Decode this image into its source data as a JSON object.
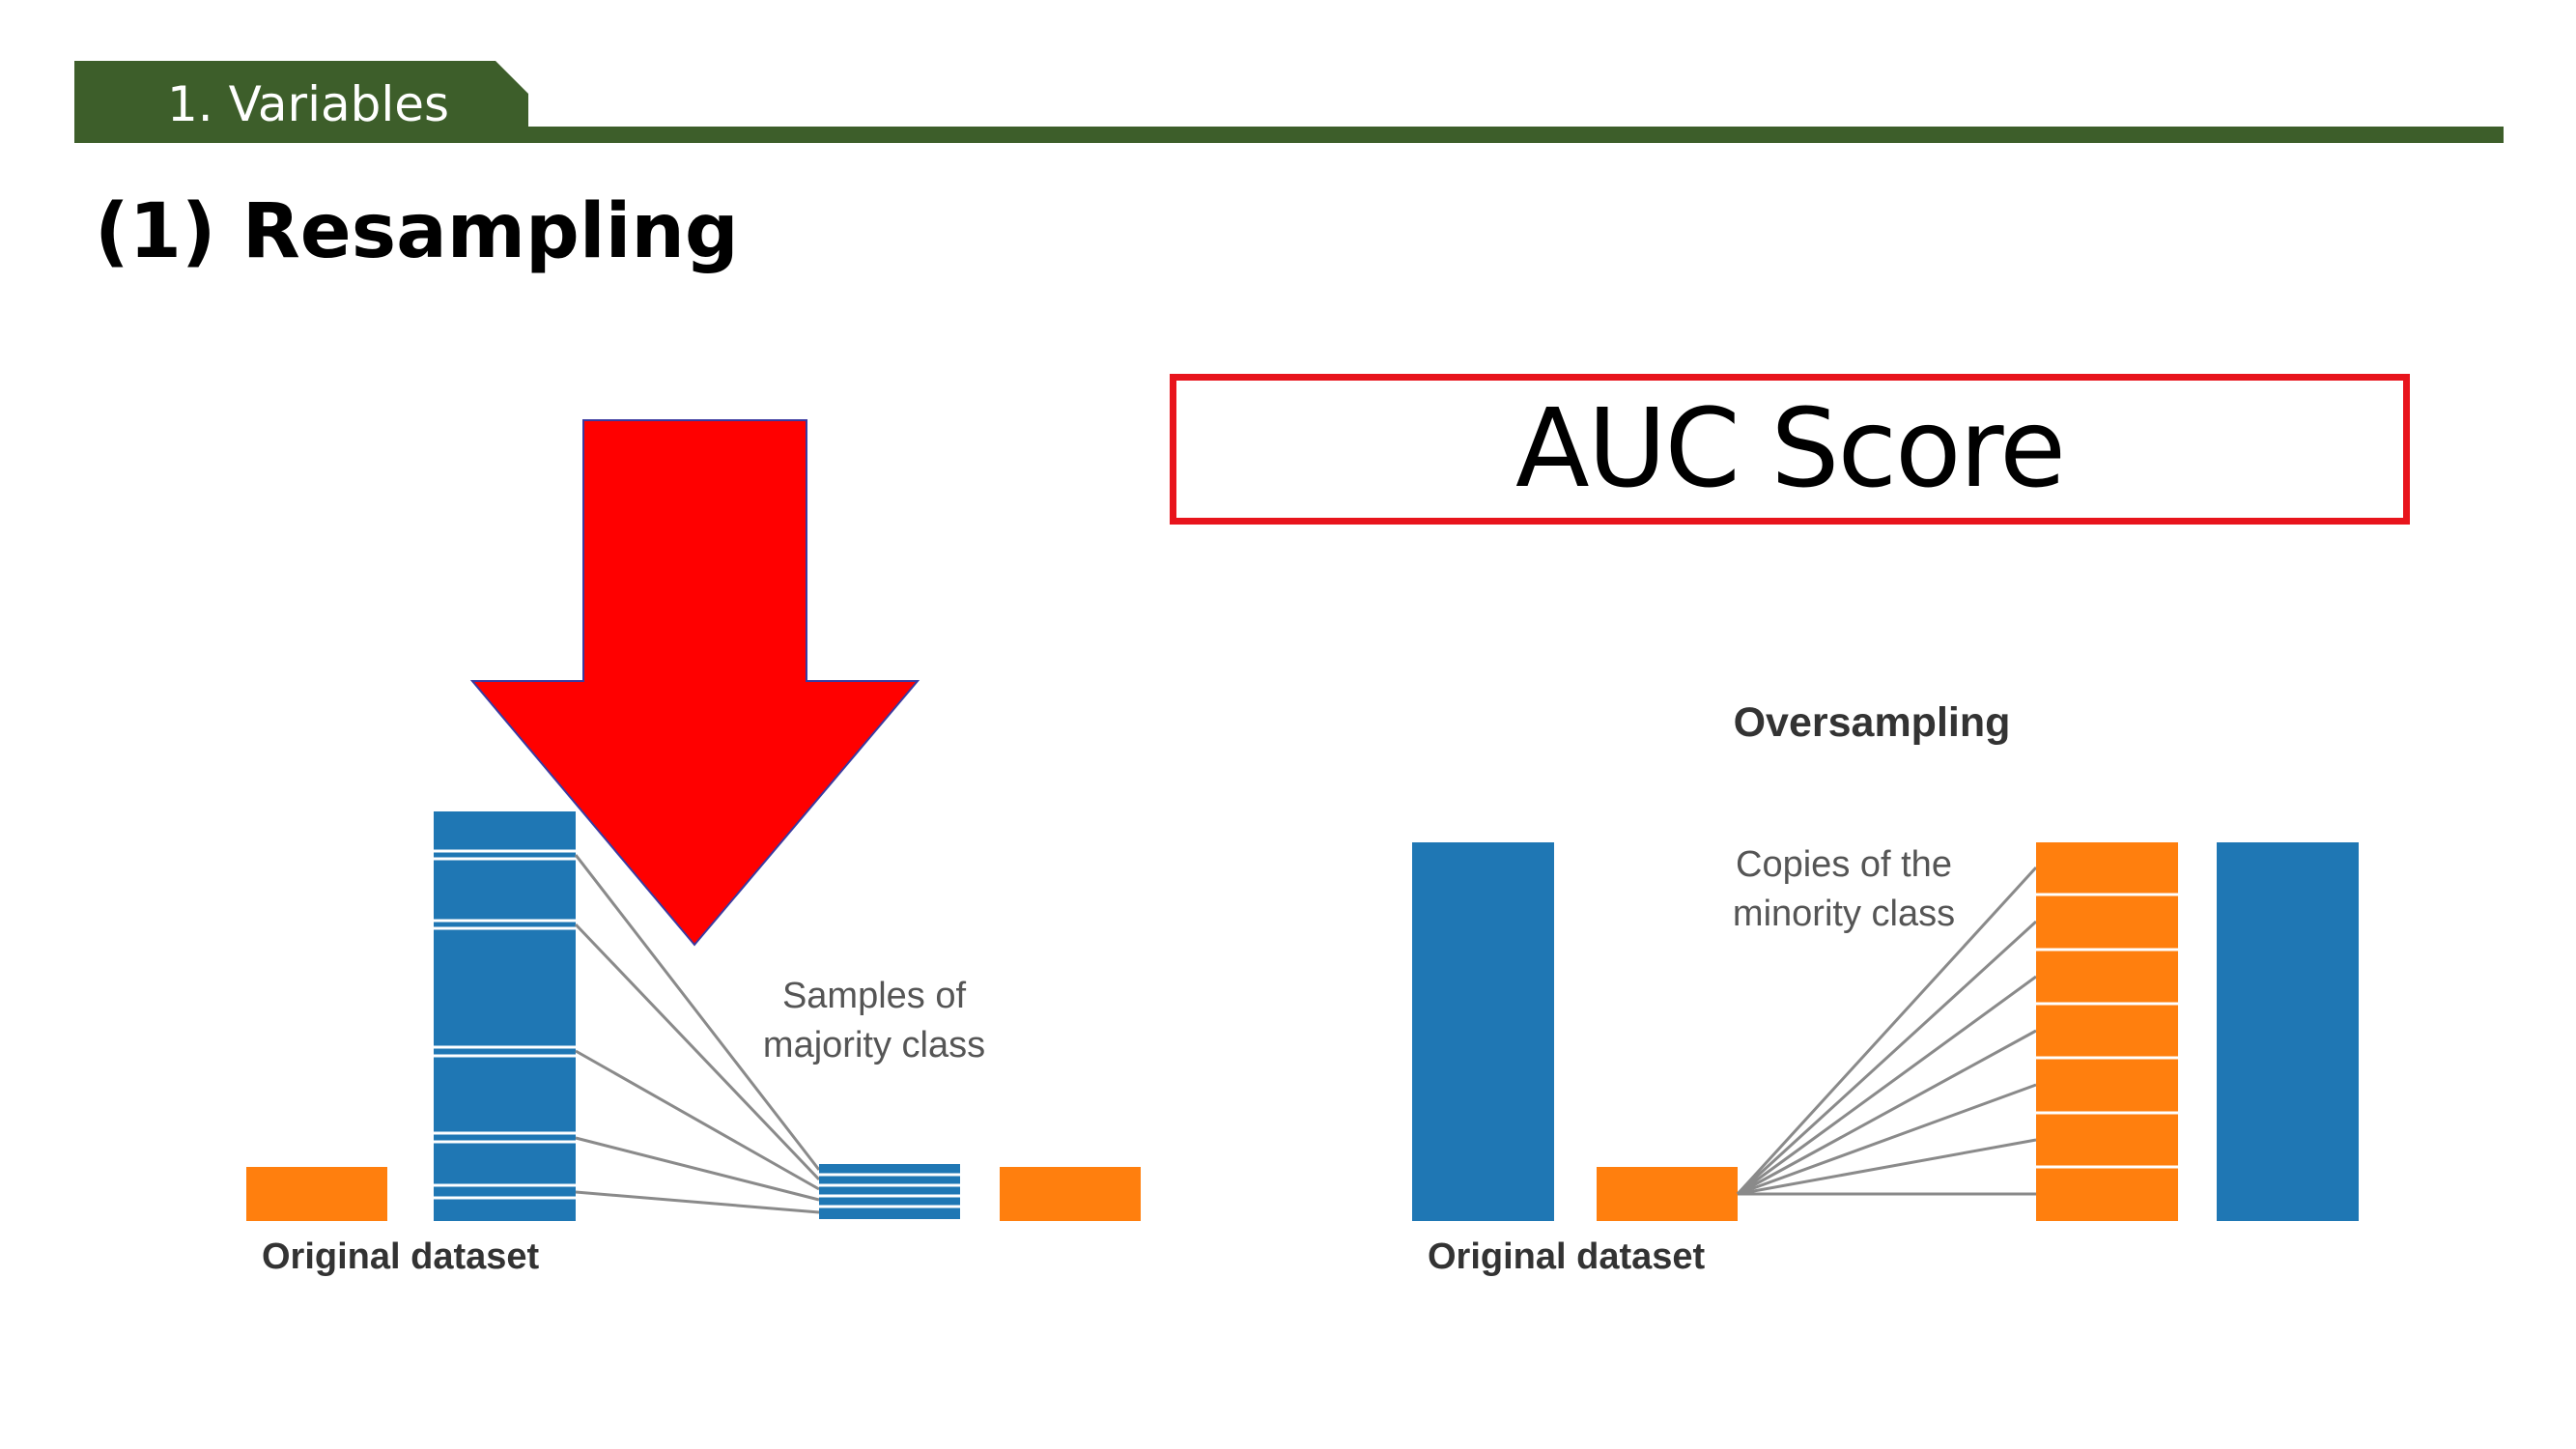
{
  "header": {
    "section_label": "1. Variables"
  },
  "slide": {
    "title": "(1) Resampling",
    "highlight_box_text": "AUC Score"
  },
  "left_diagram": {
    "caption": "Original dataset",
    "annotation_line1": "Samples of",
    "annotation_line2": "majority class"
  },
  "right_diagram": {
    "title": "Oversampling",
    "caption": "Original dataset",
    "annotation_line1": "Copies of the",
    "annotation_line2": "minority class"
  },
  "colors": {
    "header_green": "#3d5e2a",
    "highlight_red": "#e8141c",
    "arrow_red": "#ff0000",
    "majority_blue": "#1f77b4",
    "minority_orange": "#ff7f0e"
  }
}
